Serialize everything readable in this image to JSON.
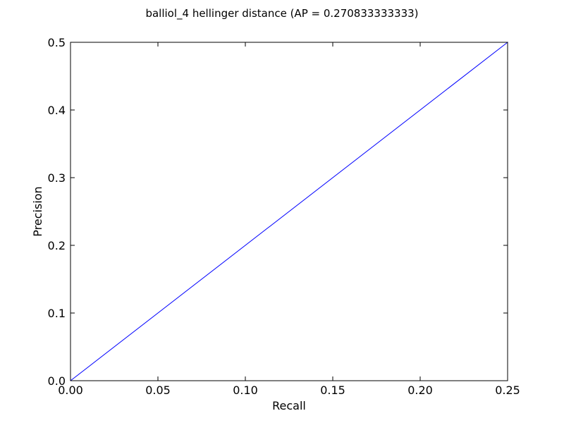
{
  "chart_data": {
    "type": "line",
    "title": "balliol_4 hellinger distance  (AP = 0.270833333333)",
    "xlabel": "Recall",
    "ylabel": "Precision",
    "xlim": [
      0.0,
      0.25
    ],
    "ylim": [
      0.0,
      0.5
    ],
    "xticks": [
      0.0,
      0.05,
      0.1,
      0.15,
      0.2,
      0.25
    ],
    "xtick_labels": [
      "0.00",
      "0.05",
      "0.10",
      "0.15",
      "0.20",
      "0.25"
    ],
    "yticks": [
      0.0,
      0.1,
      0.2,
      0.3,
      0.4,
      0.5
    ],
    "ytick_labels": [
      "0.0",
      "0.1",
      "0.2",
      "0.3",
      "0.4",
      "0.5"
    ],
    "grid": false,
    "series": [
      {
        "color": "#0000ff",
        "x": [
          0.0,
          0.25,
          0.25
        ],
        "y": [
          0.0,
          0.5,
          0.25
        ]
      }
    ]
  }
}
